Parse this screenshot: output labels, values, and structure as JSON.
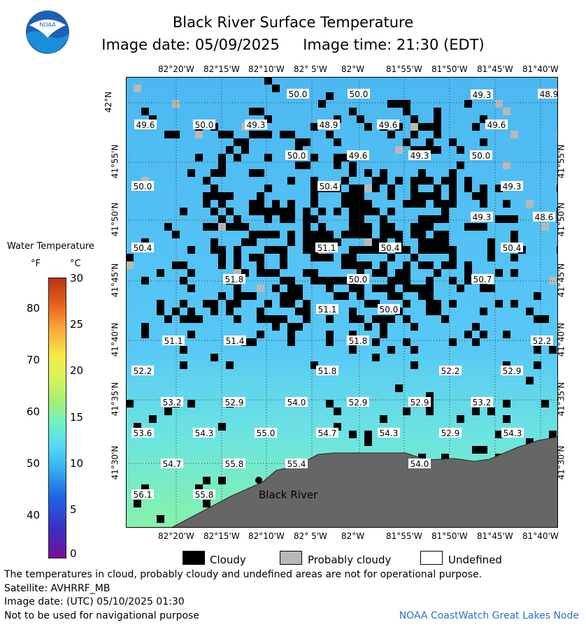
{
  "header": {
    "title": "Black River Surface Temperature",
    "subtitle": "Image date: 05/09/2025     Image time: 21:30 (EDT)",
    "logo_text": "NOAA"
  },
  "map": {
    "lon_labels": [
      "82°20'W",
      "82°15'W",
      "82°10'W",
      "82° 5'W",
      "82°W",
      "81°55'W",
      "81°50'W",
      "81°45'W",
      "81°40'W"
    ],
    "lat_labels": [
      "42°N",
      "41°55'N",
      "41°50'N",
      "41°45'N",
      "41°40'N",
      "41°35'N",
      "41°30'N"
    ],
    "place_label": "Black River",
    "temperature_labels": [
      "50.0",
      "50.0",
      "49.3",
      "48.9",
      "49.6",
      "50.0",
      "49.3",
      "48.9",
      "49.6",
      "49.6",
      "50.0",
      "49.6",
      "49.3",
      "50.0",
      "50.0",
      "50.4",
      "49.3",
      "49.3",
      "48.6",
      "50.4",
      "51.1",
      "50.4",
      "50.4",
      "51.8",
      "50.0",
      "50.7",
      "51.1",
      "50.0",
      "51.1",
      "51.4",
      "51.8",
      "52.2",
      "52.2",
      "51.8",
      "52.2",
      "52.9",
      "53.2",
      "52.9",
      "54.0",
      "52.9",
      "52.9",
      "53.2",
      "53.6",
      "54.3",
      "55.0",
      "54.7",
      "54.3",
      "52.9",
      "54.3",
      "54.7",
      "55.8",
      "55.4",
      "54.0",
      "56.1",
      "55.8"
    ],
    "colors": {
      "water": "#56c4f4",
      "water_warm": "#7ff0b4",
      "cloud": "#000000",
      "probably_cloudy": "#b8b8b8",
      "land": "#666666"
    }
  },
  "colorbar": {
    "title": "Water Temperature",
    "unit_f": "°F",
    "unit_c": "°C",
    "ticks_f": [
      "80",
      "70",
      "60",
      "50",
      "40"
    ],
    "ticks_c": [
      "30",
      "25",
      "20",
      "15",
      "10",
      "5",
      "0"
    ]
  },
  "legend": {
    "cloudy": "Cloudy",
    "probably_cloudy": "Probably cloudy",
    "undefined": "Undefined"
  },
  "footer": {
    "line1": "The temperatures in cloud, probably cloudy and undefined areas are not for operational purpose.",
    "line2": "Satellite: AVHRRF_MB",
    "line3": "Image date: (UTC) 05/10/2025  01:30",
    "line4": "Not to be used for navigational purpose",
    "credit": "NOAA CoastWatch Great Lakes Node"
  }
}
